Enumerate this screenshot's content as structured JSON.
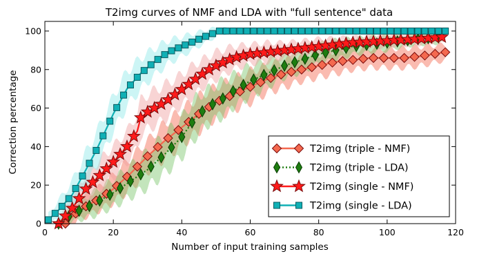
{
  "chart_data": {
    "type": "line",
    "title": "T2img curves of NMF and LDA with \"full sentence\" data",
    "xlabel": "Number of input training samples",
    "ylabel": "Correction percentage",
    "xlim": [
      0,
      120
    ],
    "ylim": [
      0,
      105
    ],
    "xticks": [
      "0",
      "20",
      "40",
      "60",
      "80",
      "100",
      "120"
    ],
    "yticks": [
      "0",
      "20",
      "40",
      "60",
      "80",
      "100"
    ],
    "grid": false,
    "legend_position": "lower-right",
    "series": [
      {
        "name": "T2img (triple - NMF)",
        "color": "#f4694f",
        "band_color": "#f4694f",
        "marker": "diamond",
        "line_style": "solid",
        "every": 3,
        "x": [
          6,
          10,
          16,
          20,
          25,
          30,
          35,
          40,
          45,
          50,
          55,
          60,
          65,
          70,
          75,
          80,
          85,
          90,
          95,
          100,
          105,
          110,
          117
        ],
        "y": [
          0,
          7,
          13,
          18,
          26,
          35,
          43,
          50,
          57,
          63,
          67,
          71,
          75,
          78,
          80,
          82,
          84,
          85,
          86,
          86,
          86,
          87,
          89
        ],
        "band": [
          3,
          5,
          6,
          7,
          8,
          8,
          9,
          9,
          9,
          8,
          8,
          8,
          7,
          7,
          6,
          6,
          6,
          5,
          5,
          5,
          5,
          5,
          4
        ]
      },
      {
        "name": "T2img (triple - LDA)",
        "color": "#1e7d10",
        "band_color": "#7bc66b",
        "marker": "thin-diamond",
        "line_style": "dotted",
        "every": 3,
        "x": [
          4,
          8,
          14,
          20,
          25,
          30,
          35,
          40,
          44,
          47,
          49,
          52,
          56,
          60,
          65,
          70,
          75,
          80,
          85,
          90,
          95,
          100,
          105,
          110,
          117
        ],
        "y": [
          0,
          5,
          10,
          16,
          22,
          28,
          36,
          45,
          55,
          60,
          62,
          65,
          70,
          74,
          78,
          82,
          85,
          88,
          90,
          92,
          93,
          94,
          95,
          96,
          97
        ],
        "band": [
          2,
          4,
          6,
          7,
          8,
          9,
          10,
          10,
          10,
          9,
          9,
          9,
          8,
          8,
          7,
          6,
          6,
          5,
          5,
          4,
          4,
          4,
          3,
          3,
          3
        ]
      },
      {
        "name": "T2img (single - NMF)",
        "color": "#ff1a1a",
        "band_color": "#f0a0a0",
        "marker": "star",
        "line_style": "solid",
        "every": 2,
        "x": [
          4,
          8,
          12,
          16,
          20,
          24,
          27,
          28,
          30,
          32,
          35,
          38,
          41,
          44,
          47,
          50,
          55,
          60,
          65,
          70,
          80,
          90,
          100,
          110,
          117
        ],
        "y": [
          0,
          8,
          18,
          25,
          32,
          40,
          48,
          55,
          58,
          60,
          63,
          67,
          71,
          75,
          79,
          82,
          86,
          88,
          89,
          90,
          92,
          94,
          95,
          96,
          97
        ],
        "band": [
          3,
          6,
          8,
          8,
          8,
          8,
          9,
          9,
          9,
          9,
          9,
          8,
          8,
          8,
          7,
          7,
          6,
          5,
          5,
          4,
          4,
          3,
          3,
          3,
          2
        ]
      },
      {
        "name": "T2img (single - LDA)",
        "color": "#10b0b5",
        "band_color": "#8fe8e8",
        "marker": "square",
        "line_style": "solid",
        "every": 2,
        "x": [
          1,
          4,
          8,
          12,
          15,
          20,
          24,
          28,
          32,
          36,
          40,
          44,
          48,
          51,
          55,
          60,
          70,
          80,
          90,
          100,
          110,
          117
        ],
        "y": [
          2,
          7,
          15,
          28,
          38,
          57,
          70,
          78,
          84,
          89,
          92,
          95,
          98,
          100,
          100,
          100,
          100,
          100,
          100,
          100,
          100,
          100
        ],
        "band": [
          3,
          5,
          7,
          9,
          9,
          9,
          9,
          8,
          7,
          6,
          5,
          4,
          3,
          2,
          1,
          1,
          0,
          0,
          0,
          0,
          0,
          0
        ]
      }
    ]
  }
}
